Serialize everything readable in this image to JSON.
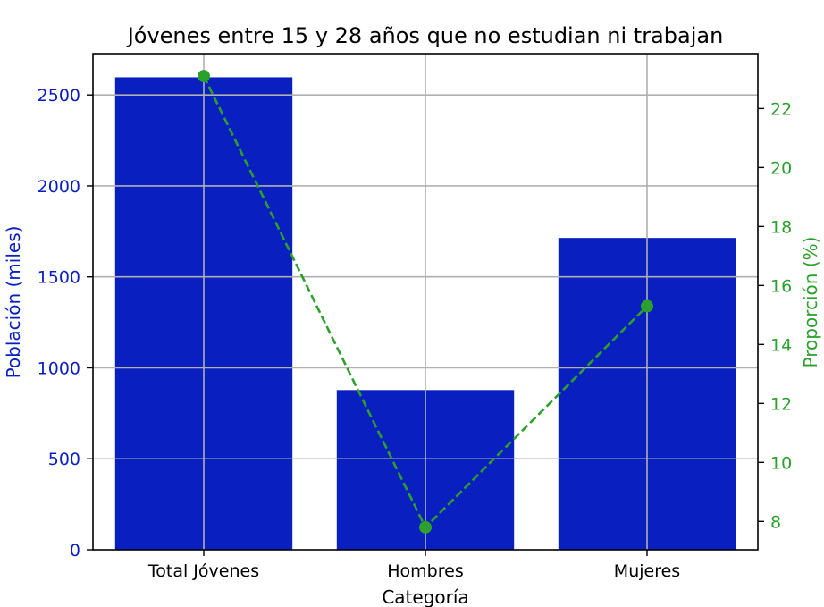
{
  "chart_data": {
    "type": "bar+line",
    "title": "Jóvenes entre 15 y 28 años que no estudian ni trabajan",
    "xlabel": "Categoría",
    "categories": [
      "Total Jóvenes",
      "Hombres",
      "Mujeres"
    ],
    "bar_series": {
      "name": "Población (miles)",
      "axis": "left",
      "values": [
        2597,
        878,
        1714
      ],
      "color": "#0a1fbf"
    },
    "line_series": {
      "name": "Proporción (%)",
      "axis": "right",
      "values": [
        23.1,
        7.8,
        15.3
      ],
      "color": "#2ca02c",
      "style": "dashed",
      "marker": "circle"
    },
    "y_left": {
      "label": "Población (miles)",
      "ticks": [
        0,
        500,
        1000,
        1500,
        2000,
        2500
      ],
      "tick_labels": [
        "0",
        "500",
        "1000",
        "1500",
        "2000",
        "2500"
      ],
      "range": [
        0,
        2727
      ],
      "color": "#0a1fbf"
    },
    "y_right": {
      "label": "Proporción (%)",
      "ticks": [
        8,
        10,
        12,
        14,
        16,
        18,
        20,
        22
      ],
      "tick_labels": [
        "8",
        "10",
        "12",
        "14",
        "16",
        "18",
        "20",
        "22"
      ],
      "range": [
        7.04,
        23.86
      ],
      "color": "#2ca02c"
    },
    "grid": true
  }
}
